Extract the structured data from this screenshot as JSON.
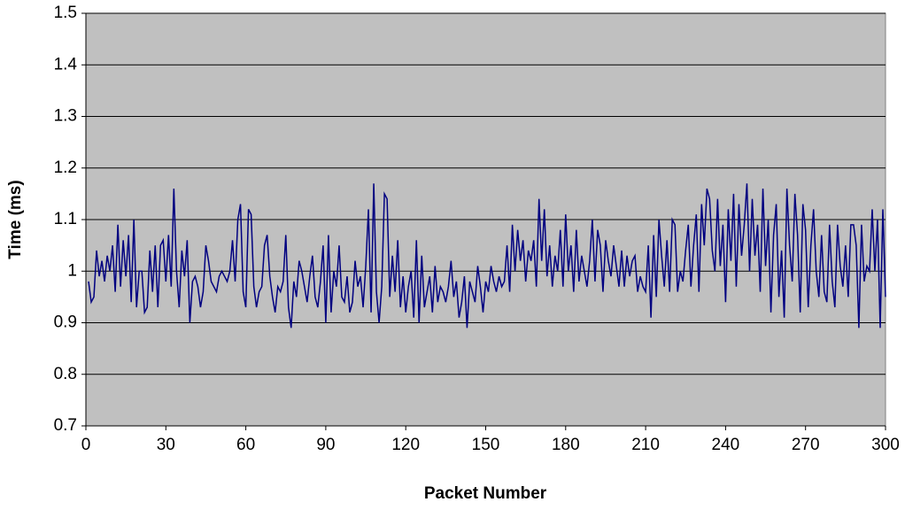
{
  "chart_data": {
    "type": "line",
    "x_label": "Packet Number",
    "y_label": "Time (ms)",
    "xlim": [
      0,
      300
    ],
    "xticks": [
      0,
      30,
      60,
      90,
      120,
      150,
      180,
      210,
      240,
      270,
      300
    ],
    "ylim": [
      0.7,
      1.5
    ],
    "yticks": [
      0.7,
      0.8,
      0.9,
      1,
      1.1,
      1.2,
      1.3,
      1.4,
      1.5
    ],
    "grid": true,
    "series": [
      {
        "color": "#000080",
        "x": [
          1,
          2,
          3,
          4,
          5,
          6,
          7,
          8,
          9,
          10,
          11,
          12,
          13,
          14,
          15,
          16,
          17,
          18,
          19,
          20,
          21,
          22,
          23,
          24,
          25,
          26,
          27,
          28,
          29,
          30,
          31,
          32,
          33,
          34,
          35,
          36,
          37,
          38,
          39,
          40,
          41,
          42,
          43,
          44,
          45,
          46,
          47,
          48,
          49,
          50,
          51,
          52,
          53,
          54,
          55,
          56,
          57,
          58,
          59,
          60,
          61,
          62,
          63,
          64,
          65,
          66,
          67,
          68,
          69,
          70,
          71,
          72,
          73,
          74,
          75,
          76,
          77,
          78,
          79,
          80,
          81,
          82,
          83,
          84,
          85,
          86,
          87,
          88,
          89,
          90,
          91,
          92,
          93,
          94,
          95,
          96,
          97,
          98,
          99,
          100,
          101,
          102,
          103,
          104,
          105,
          106,
          107,
          108,
          109,
          110,
          111,
          112,
          113,
          114,
          115,
          116,
          117,
          118,
          119,
          120,
          121,
          122,
          123,
          124,
          125,
          126,
          127,
          128,
          129,
          130,
          131,
          132,
          133,
          134,
          135,
          136,
          137,
          138,
          139,
          140,
          141,
          142,
          143,
          144,
          145,
          146,
          147,
          148,
          149,
          150,
          151,
          152,
          153,
          154,
          155,
          156,
          157,
          158,
          159,
          160,
          161,
          162,
          163,
          164,
          165,
          166,
          167,
          168,
          169,
          170,
          171,
          172,
          173,
          174,
          175,
          176,
          177,
          178,
          179,
          180,
          181,
          182,
          183,
          184,
          185,
          186,
          187,
          188,
          189,
          190,
          191,
          192,
          193,
          194,
          195,
          196,
          197,
          198,
          199,
          200,
          201,
          202,
          203,
          204,
          205,
          206,
          207,
          208,
          209,
          210,
          211,
          212,
          213,
          214,
          215,
          216,
          217,
          218,
          219,
          220,
          221,
          222,
          223,
          224,
          225,
          226,
          227,
          228,
          229,
          230,
          231,
          232,
          233,
          234,
          235,
          236,
          237,
          238,
          239,
          240,
          241,
          242,
          243,
          244,
          245,
          246,
          247,
          248,
          249,
          250,
          251,
          252,
          253,
          254,
          255,
          256,
          257,
          258,
          259,
          260,
          261,
          262,
          263,
          264,
          265,
          266,
          267,
          268,
          269,
          270,
          271,
          272,
          273,
          274,
          275,
          276,
          277,
          278,
          279,
          280,
          281,
          282,
          283,
          284,
          285,
          286,
          287,
          288,
          289,
          290,
          291,
          292,
          293,
          294,
          295,
          296,
          297,
          298,
          299,
          300
        ],
        "values": [
          0.98,
          0.94,
          0.95,
          1.04,
          0.99,
          1.02,
          0.98,
          1.03,
          1.0,
          1.05,
          0.96,
          1.09,
          0.97,
          1.06,
          0.99,
          1.07,
          0.94,
          1.1,
          0.93,
          1.0,
          1.0,
          0.92,
          0.93,
          1.04,
          0.96,
          1.05,
          0.93,
          1.05,
          1.06,
          0.98,
          1.07,
          0.97,
          1.16,
          1.0,
          0.93,
          1.04,
          0.99,
          1.06,
          0.9,
          0.98,
          0.99,
          0.97,
          0.93,
          0.96,
          1.05,
          1.02,
          0.98,
          0.97,
          0.96,
          0.99,
          1.0,
          0.99,
          0.98,
          1.0,
          1.06,
          0.98,
          1.1,
          1.13,
          0.96,
          0.93,
          1.12,
          1.11,
          0.97,
          0.93,
          0.96,
          0.97,
          1.05,
          1.07,
          0.99,
          0.95,
          0.92,
          0.97,
          0.96,
          0.98,
          1.07,
          0.93,
          0.89,
          0.98,
          0.95,
          1.02,
          1.0,
          0.97,
          0.94,
          0.99,
          1.03,
          0.95,
          0.93,
          0.98,
          1.05,
          0.9,
          1.07,
          0.92,
          1.0,
          0.97,
          1.05,
          0.95,
          0.94,
          0.99,
          0.92,
          0.94,
          1.02,
          0.97,
          0.99,
          0.93,
          1.01,
          1.12,
          0.92,
          1.17,
          0.96,
          0.9,
          0.97,
          1.15,
          1.14,
          0.95,
          1.03,
          0.96,
          1.06,
          0.93,
          0.99,
          0.92,
          0.97,
          1.0,
          0.91,
          1.06,
          0.9,
          1.03,
          0.93,
          0.96,
          0.99,
          0.92,
          1.01,
          0.94,
          0.97,
          0.96,
          0.94,
          0.97,
          1.02,
          0.95,
          0.98,
          0.91,
          0.94,
          0.99,
          0.89,
          0.98,
          0.96,
          0.94,
          1.01,
          0.97,
          0.92,
          0.98,
          0.96,
          1.01,
          0.98,
          0.96,
          0.99,
          0.97,
          0.98,
          1.05,
          0.96,
          1.09,
          1.0,
          1.08,
          1.02,
          1.06,
          0.98,
          1.04,
          1.02,
          1.06,
          0.97,
          1.14,
          1.02,
          1.12,
          0.99,
          1.05,
          0.97,
          1.03,
          1.0,
          1.08,
          0.97,
          1.11,
          1.0,
          1.05,
          0.96,
          1.08,
          0.98,
          1.03,
          1.0,
          0.97,
          1.02,
          1.1,
          0.98,
          1.08,
          1.05,
          0.96,
          1.06,
          1.02,
          0.99,
          1.05,
          1.01,
          0.97,
          1.04,
          0.97,
          1.03,
          0.99,
          1.02,
          1.03,
          0.96,
          0.99,
          0.97,
          0.96,
          1.05,
          0.91,
          1.07,
          0.95,
          1.1,
          1.03,
          0.97,
          1.06,
          0.96,
          1.1,
          1.09,
          0.96,
          1.0,
          0.98,
          1.04,
          1.09,
          0.97,
          1.05,
          1.11,
          0.96,
          1.13,
          1.05,
          1.16,
          1.14,
          1.04,
          1.0,
          1.14,
          1.01,
          1.09,
          0.94,
          1.12,
          1.02,
          1.15,
          0.97,
          1.13,
          1.03,
          1.09,
          1.17,
          1.0,
          1.14,
          1.03,
          1.09,
          0.96,
          1.16,
          1.01,
          1.1,
          0.92,
          1.07,
          1.13,
          0.95,
          1.04,
          0.91,
          1.16,
          1.05,
          0.98,
          1.15,
          1.07,
          0.92,
          1.13,
          1.08,
          0.93,
          1.05,
          1.12,
          1.0,
          0.95,
          1.07,
          0.96,
          0.94,
          1.09,
          0.98,
          0.93,
          1.09,
          1.01,
          0.97,
          1.05,
          0.95,
          1.09,
          1.09,
          1.05,
          0.89,
          1.09,
          0.98,
          1.01,
          1.0,
          1.12,
          1.0,
          1.1,
          0.89,
          1.12,
          0.95
        ]
      }
    ]
  }
}
